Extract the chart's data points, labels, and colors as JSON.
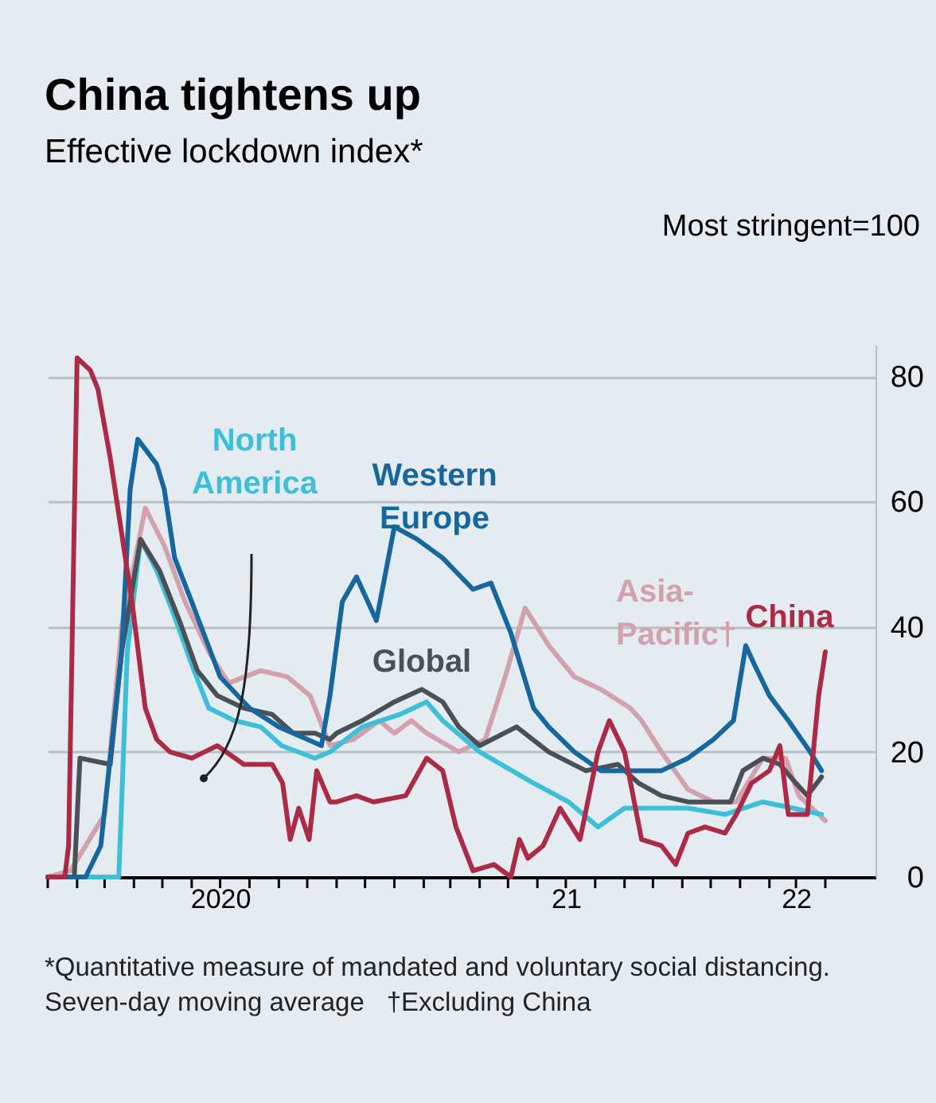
{
  "chart_data": {
    "type": "line",
    "title": "China tightens up",
    "subtitle": "Effective lockdown index*",
    "ylabel": "Most stringent=100",
    "annotations": [
      "*Quantitative measure of mandated and voluntary social distancing. Seven-day moving average",
      "†Excluding China"
    ],
    "xlim": [
      "2020-01-01",
      "2022-05-24"
    ],
    "xticks": [
      {
        "value": "2020-01-01",
        "label": null
      },
      {
        "value": "2020-02-01",
        "label": null
      },
      {
        "value": "2020-03-01",
        "label": null
      },
      {
        "value": "2020-04-01",
        "label": null
      },
      {
        "value": "2020-05-01",
        "label": null
      },
      {
        "value": "2020-06-01",
        "label": null
      },
      {
        "value": "2020-07-01",
        "label": "2020"
      },
      {
        "value": "2020-08-01",
        "label": null
      },
      {
        "value": "2020-09-01",
        "label": null
      },
      {
        "value": "2020-10-01",
        "label": null
      },
      {
        "value": "2020-11-01",
        "label": null
      },
      {
        "value": "2020-12-01",
        "label": null
      },
      {
        "value": "2021-01-01",
        "label": null
      },
      {
        "value": "2021-02-01",
        "label": null
      },
      {
        "value": "2021-03-01",
        "label": null
      },
      {
        "value": "2021-04-01",
        "label": null
      },
      {
        "value": "2021-05-01",
        "label": null
      },
      {
        "value": "2021-06-01",
        "label": null
      },
      {
        "value": "2021-07-01",
        "label": "21"
      },
      {
        "value": "2021-08-01",
        "label": null
      },
      {
        "value": "2021-09-01",
        "label": null
      },
      {
        "value": "2021-10-01",
        "label": null
      },
      {
        "value": "2021-11-01",
        "label": null
      },
      {
        "value": "2021-12-01",
        "label": null
      },
      {
        "value": "2022-01-01",
        "label": null
      },
      {
        "value": "2022-02-01",
        "label": null
      },
      {
        "value": "2022-03-01",
        "label": "22"
      },
      {
        "value": "2022-04-01",
        "label": null
      }
    ],
    "ylim": [
      0,
      85
    ],
    "yticks": [
      0,
      20,
      40,
      60,
      80
    ],
    "grid": "y",
    "series": [
      {
        "name": "Asia-Pacific†",
        "color": "#d3a1ab",
        "x": [
          "2020-01-01",
          "2020-01-25",
          "2020-03-01",
          "2020-03-19",
          "2020-04-13",
          "2020-05-03",
          "2020-05-25",
          "2020-06-19",
          "2020-07-10",
          "2020-08-13",
          "2020-09-10",
          "2020-10-04",
          "2020-10-25",
          "2020-11-19",
          "2020-12-16",
          "2021-01-01",
          "2021-01-19",
          "2021-02-04",
          "2021-03-10",
          "2021-04-07",
          "2021-04-28",
          "2021-05-19",
          "2021-06-13",
          "2021-07-10",
          "2021-08-07",
          "2021-09-07",
          "2021-09-19",
          "2021-10-10",
          "2021-11-07",
          "2021-12-04",
          "2021-12-28",
          "2022-01-25",
          "2022-02-18",
          "2022-03-04",
          "2022-04-01"
        ],
        "values": [
          0,
          1,
          10,
          40,
          59,
          53,
          44,
          36,
          31,
          33,
          32,
          29,
          21,
          22,
          25,
          23,
          25,
          23,
          20,
          22,
          32,
          43,
          37,
          32,
          30,
          27,
          25,
          20,
          14,
          12,
          12,
          19,
          19,
          13,
          9
        ]
      },
      {
        "name": "North America",
        "color": "#3cbfd7",
        "x": [
          "2020-01-01",
          "2020-03-16",
          "2020-03-25",
          "2020-04-08",
          "2020-04-25",
          "2020-05-13",
          "2020-06-01",
          "2020-06-19",
          "2020-07-16",
          "2020-08-13",
          "2020-09-04",
          "2020-10-09",
          "2020-10-25",
          "2020-11-28",
          "2021-01-07",
          "2021-02-04",
          "2021-02-21",
          "2021-04-01",
          "2021-05-28",
          "2021-07-04",
          "2021-08-04",
          "2021-09-01",
          "2021-09-28",
          "2021-11-07",
          "2021-12-16",
          "2022-01-25",
          "2022-02-26",
          "2022-03-28"
        ],
        "values": [
          0,
          0,
          36,
          54,
          49,
          42,
          34,
          27,
          25,
          24,
          21,
          19,
          20,
          24,
          26,
          28,
          25,
          20,
          15,
          12,
          8,
          11,
          11,
          11,
          10,
          12,
          11,
          10
        ]
      },
      {
        "name": "Global",
        "color": "#4b5056",
        "x": [
          "2020-01-01",
          "2020-01-29",
          "2020-02-04",
          "2020-03-07",
          "2020-03-19",
          "2020-04-08",
          "2020-04-28",
          "2020-05-19",
          "2020-06-07",
          "2020-06-28",
          "2020-07-26",
          "2020-08-25",
          "2020-09-16",
          "2020-10-09",
          "2020-10-25",
          "2020-11-01",
          "2020-11-28",
          "2021-01-01",
          "2021-01-30",
          "2021-02-21",
          "2021-03-10",
          "2021-04-01",
          "2021-05-10",
          "2021-06-13",
          "2021-07-22",
          "2021-08-25",
          "2021-09-16",
          "2021-10-10",
          "2021-11-07",
          "2021-12-22",
          "2022-01-04",
          "2022-01-25",
          "2022-02-12",
          "2022-03-01",
          "2022-03-13",
          "2022-03-28"
        ],
        "values": [
          0,
          0,
          19,
          18,
          36,
          54,
          49,
          41,
          33,
          29,
          27,
          26,
          23,
          23,
          22,
          23,
          25,
          28,
          30,
          28,
          24,
          21,
          24,
          20,
          17,
          18,
          15,
          13,
          12,
          12,
          17,
          19,
          18,
          15,
          13,
          16
        ]
      },
      {
        "name": "Western Europe",
        "color": "#17679f",
        "x": [
          "2020-01-01",
          "2020-02-10",
          "2020-02-26",
          "2020-03-19",
          "2020-03-28",
          "2020-04-05",
          "2020-04-25",
          "2020-05-03",
          "2020-05-14",
          "2020-06-01",
          "2020-07-01",
          "2020-08-01",
          "2020-09-01",
          "2020-10-01",
          "2020-10-16",
          "2020-10-25",
          "2020-11-07",
          "2020-11-22",
          "2020-12-13",
          "2021-01-01",
          "2021-01-25",
          "2021-02-21",
          "2021-03-25",
          "2021-04-13",
          "2021-05-04",
          "2021-05-28",
          "2021-06-13",
          "2021-07-10",
          "2021-08-07",
          "2021-09-13",
          "2021-10-10",
          "2021-11-07",
          "2021-12-04",
          "2021-12-25",
          "2022-01-07",
          "2022-01-16",
          "2022-02-01",
          "2022-02-21",
          "2022-03-16",
          "2022-03-28"
        ],
        "values": [
          0,
          0,
          5,
          36,
          62,
          70,
          66,
          62,
          51,
          44,
          32,
          27,
          24,
          22,
          21,
          29,
          44,
          48,
          41,
          56,
          54,
          51,
          46,
          47,
          39,
          27,
          24,
          20,
          17,
          17,
          17,
          19,
          22,
          25,
          37,
          34,
          29,
          25,
          20,
          17
        ]
      },
      {
        "name": "China",
        "color": "#ab2a45",
        "x": [
          "2020-01-01",
          "2020-01-19",
          "2020-01-23",
          "2020-02-01",
          "2020-02-15",
          "2020-02-23",
          "2020-03-07",
          "2020-03-30",
          "2020-04-13",
          "2020-04-25",
          "2020-05-09",
          "2020-06-01",
          "2020-06-28",
          "2020-07-26",
          "2020-08-25",
          "2020-09-05",
          "2020-09-13",
          "2020-09-22",
          "2020-10-03",
          "2020-10-11",
          "2020-10-25",
          "2020-11-01",
          "2020-11-22",
          "2020-12-10",
          "2021-01-13",
          "2021-02-04",
          "2021-02-21",
          "2021-03-07",
          "2021-03-25",
          "2021-04-16",
          "2021-05-04",
          "2021-05-13",
          "2021-05-22",
          "2021-06-07",
          "2021-06-25",
          "2021-07-16",
          "2021-08-04",
          "2021-08-16",
          "2021-09-01",
          "2021-09-19",
          "2021-10-10",
          "2021-10-25",
          "2021-11-07",
          "2021-11-25",
          "2021-12-16",
          "2021-12-28",
          "2022-01-13",
          "2022-02-01",
          "2022-02-12",
          "2022-02-21",
          "2022-03-13",
          "2022-03-25",
          "2022-04-01"
        ],
        "values": [
          0,
          0,
          5,
          83,
          81,
          78,
          67,
          44,
          27,
          22,
          20,
          19,
          21,
          18,
          18,
          15,
          6,
          11,
          6,
          17,
          12,
          12,
          13,
          12,
          13,
          19,
          17,
          8,
          1,
          2,
          0,
          6,
          3,
          5,
          11,
          6,
          20,
          25,
          20,
          6,
          5,
          2,
          7,
          8,
          7,
          10,
          15,
          17,
          21,
          10,
          10,
          29,
          36
        ]
      }
    ]
  }
}
